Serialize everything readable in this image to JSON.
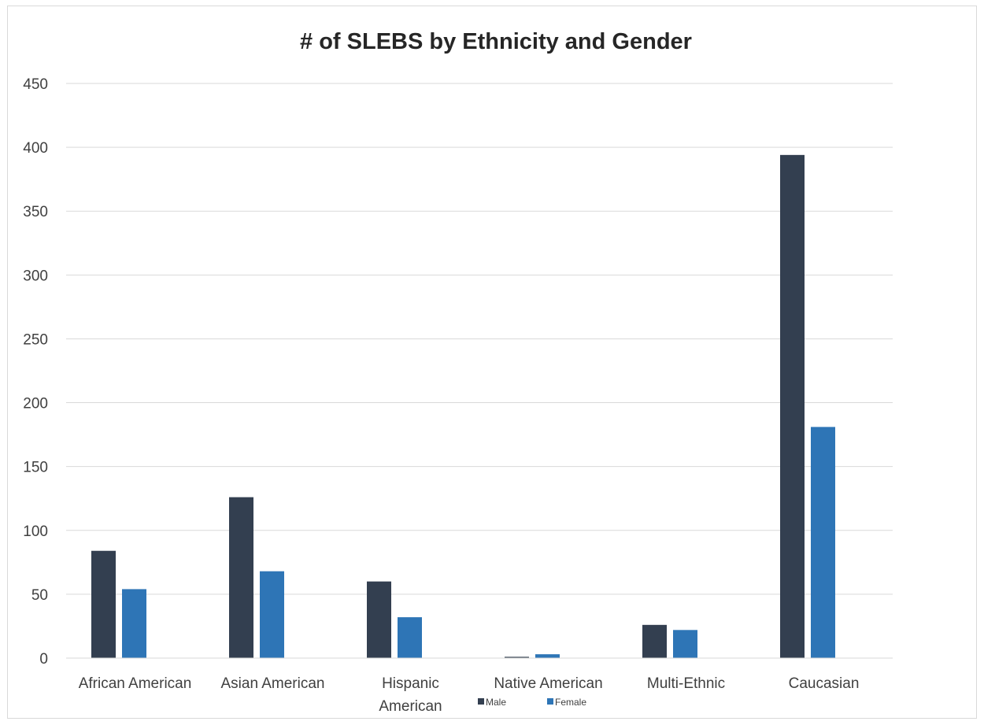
{
  "chart_data": {
    "type": "bar",
    "title": "# of SLEBS by Ethnicity and Gender",
    "xlabel": "",
    "ylabel": "",
    "categories": [
      [
        "African American"
      ],
      [
        "Asian American"
      ],
      [
        "Hispanic",
        "American"
      ],
      [
        "Native American"
      ],
      [
        "Multi-Ethnic"
      ],
      [
        "Caucasian"
      ]
    ],
    "series": [
      {
        "name": "Male",
        "color": "#333f50",
        "values": [
          84,
          126,
          60,
          1,
          26,
          394
        ]
      },
      {
        "name": "Female",
        "color": "#2e75b6",
        "values": [
          54,
          68,
          32,
          3,
          22,
          181
        ]
      }
    ],
    "ylim": [
      0,
      450
    ],
    "yticks": [
      0,
      50,
      100,
      150,
      200,
      250,
      300,
      350,
      400,
      450
    ],
    "grid": true,
    "legend": "bottom",
    "colors": {
      "gridline": "#d9d9d9",
      "axis": "#d9d9d9",
      "text": "#404040",
      "title": "#262626"
    }
  }
}
